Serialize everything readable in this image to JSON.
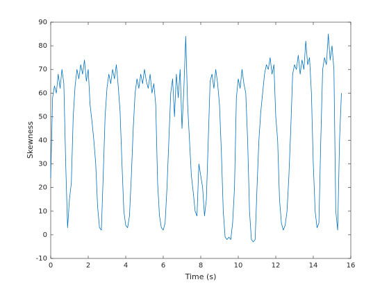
{
  "chart_data": {
    "type": "line",
    "xlabel": "Time (s)",
    "ylabel": "Skewness",
    "xlim": [
      0,
      16
    ],
    "xticks": [
      0,
      2,
      4,
      6,
      8,
      10,
      12,
      14,
      16
    ],
    "ylim": [
      -10,
      90
    ],
    "yticks": [
      -10,
      0,
      10,
      20,
      30,
      40,
      50,
      60,
      70,
      80,
      90
    ],
    "series": [
      {
        "color": "#0072bd",
        "x": [
          0,
          0.1,
          0.2,
          0.3,
          0.4,
          0.5,
          0.6,
          0.7,
          0.8,
          0.9,
          1,
          1.1,
          1.2,
          1.3,
          1.4,
          1.5,
          1.6,
          1.7,
          1.8,
          1.9,
          2,
          2.1,
          2.2,
          2.3,
          2.4,
          2.5,
          2.6,
          2.7,
          2.8,
          2.9,
          3,
          3.1,
          3.2,
          3.3,
          3.4,
          3.5,
          3.6,
          3.7,
          3.8,
          3.9,
          4,
          4.1,
          4.2,
          4.3,
          4.4,
          4.5,
          4.6,
          4.7,
          4.8,
          4.9,
          5,
          5.1,
          5.2,
          5.3,
          5.4,
          5.5,
          5.6,
          5.7,
          5.8,
          5.9,
          6,
          6.1,
          6.2,
          6.3,
          6.4,
          6.5,
          6.6,
          6.7,
          6.8,
          6.9,
          7,
          7.1,
          7.2,
          7.3,
          7.4,
          7.5,
          7.6,
          7.7,
          7.8,
          7.9,
          8,
          8.1,
          8.2,
          8.3,
          8.4,
          8.5,
          8.6,
          8.7,
          8.8,
          8.9,
          9,
          9.1,
          9.2,
          9.3,
          9.4,
          9.5,
          9.6,
          9.7,
          9.8,
          9.9,
          10,
          10.1,
          10.2,
          10.3,
          10.4,
          10.5,
          10.6,
          10.7,
          10.8,
          10.9,
          11,
          11.1,
          11.2,
          11.3,
          11.4,
          11.5,
          11.6,
          11.7,
          11.8,
          11.9,
          12,
          12.1,
          12.2,
          12.3,
          12.4,
          12.5,
          12.6,
          12.7,
          12.8,
          12.9,
          13,
          13.1,
          13.2,
          13.3,
          13.4,
          13.5,
          13.6,
          13.7,
          13.8,
          13.9,
          14,
          14.1,
          14.2,
          14.3,
          14.4,
          14.5,
          14.6,
          14.7,
          14.8,
          14.9,
          15,
          15.1,
          15.2,
          15.3,
          15.4,
          15.5
        ],
        "values": [
          24,
          58,
          63,
          60,
          68,
          62,
          70,
          64,
          30,
          3,
          15,
          22,
          50,
          63,
          70,
          66,
          72,
          68,
          74,
          65,
          70,
          55,
          48,
          40,
          30,
          12,
          3,
          2,
          25,
          50,
          62,
          68,
          64,
          70,
          66,
          72,
          63,
          52,
          30,
          10,
          4,
          3,
          8,
          25,
          45,
          60,
          66,
          62,
          68,
          64,
          70,
          65,
          62,
          68,
          60,
          64,
          55,
          22,
          8,
          3,
          2,
          5,
          20,
          40,
          60,
          66,
          50,
          68,
          58,
          70,
          45,
          62,
          84,
          55,
          40,
          25,
          18,
          10,
          8,
          30,
          25,
          20,
          8,
          15,
          40,
          65,
          68,
          62,
          70,
          64,
          55,
          35,
          10,
          -1,
          -2,
          -1,
          -2,
          5,
          20,
          58,
          66,
          62,
          70,
          64,
          60,
          40,
          10,
          -2,
          -3,
          -2,
          20,
          40,
          52,
          60,
          68,
          72,
          70,
          75,
          68,
          72,
          50,
          40,
          15,
          5,
          2,
          4,
          10,
          25,
          45,
          68,
          72,
          70,
          76,
          68,
          74,
          70,
          82,
          72,
          75,
          60,
          30,
          10,
          3,
          5,
          40,
          70,
          75,
          72,
          85,
          74,
          80,
          70,
          10,
          2,
          40,
          60
        ]
      }
    ]
  }
}
